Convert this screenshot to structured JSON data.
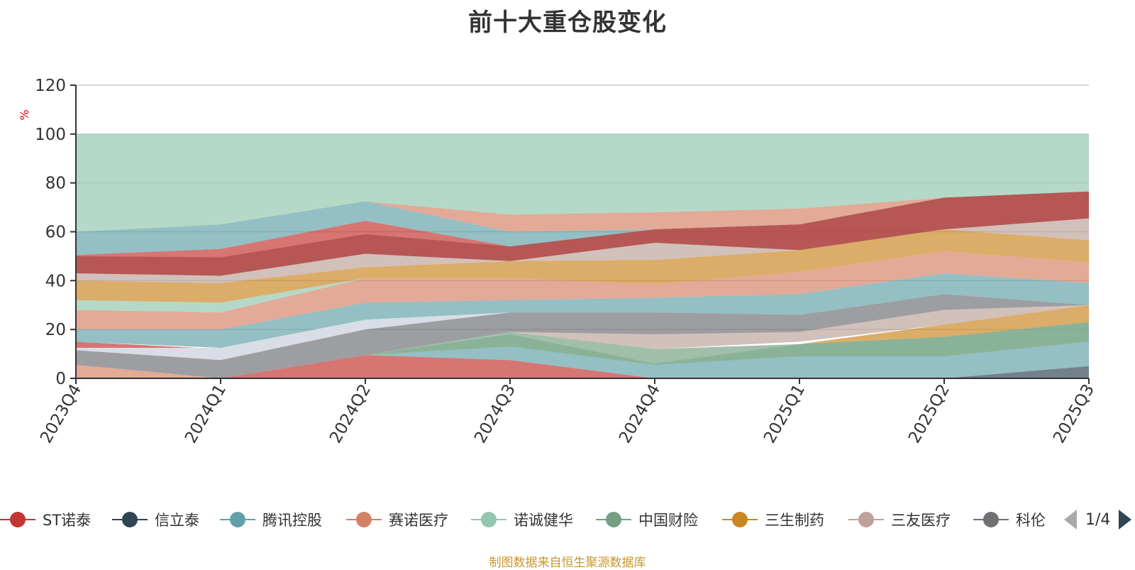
{
  "title": "前十大重仓股变化",
  "source_note": "制图数据来自恒生聚源数据库",
  "legend": {
    "items": [
      {
        "name": "ST诺泰",
        "color": "#c23531"
      },
      {
        "name": "信立泰",
        "color": "#2f4554"
      },
      {
        "name": "腾讯控股",
        "color": "#61a0a8"
      },
      {
        "name": "赛诺医疗",
        "color": "#d48265"
      },
      {
        "name": "诺诚健华",
        "color": "#91c7ae"
      },
      {
        "name": "中国财险",
        "color": "#749f83"
      },
      {
        "name": "三生制药",
        "color": "#ca8622"
      },
      {
        "name": "三友医疗",
        "color": "#bda29a"
      },
      {
        "name": "科伦",
        "color": "#6e7074"
      }
    ],
    "page": "1/4"
  },
  "chart_data": {
    "type": "area",
    "title": "前十大重仓股变化",
    "ylabel": "%",
    "ylim": [
      0,
      120
    ],
    "yticks": [
      0,
      20,
      40,
      60,
      80,
      100,
      120
    ],
    "categories": [
      "2023Q4",
      "2024Q1",
      "2024Q2",
      "2024Q3",
      "2024Q4",
      "2025Q1",
      "2025Q2",
      "2025Q3"
    ],
    "bands": [
      {
        "color": "#c23531",
        "opacity": 0.68,
        "lower": [
          0,
          0,
          0,
          0,
          0,
          0,
          0,
          0
        ],
        "upper": [
          0,
          0,
          9.5,
          7.5,
          0,
          0,
          0,
          0
        ]
      },
      {
        "color": "#2f4554",
        "opacity": 0.68,
        "lower": [
          0,
          0,
          0,
          0,
          0,
          0,
          0,
          0
        ],
        "upper": [
          0,
          0,
          0,
          0,
          0,
          0,
          0,
          5
        ]
      },
      {
        "color": "#61a0a8",
        "opacity": 0.68,
        "lower": [
          0,
          0,
          9.5,
          7.5,
          0,
          0,
          0,
          5
        ],
        "upper": [
          0,
          0,
          9.5,
          13,
          5.5,
          9,
          9,
          15
        ]
      },
      {
        "color": "#d48265",
        "opacity": 0.68,
        "lower": [
          0,
          0,
          0,
          0,
          0,
          0,
          0,
          0
        ],
        "upper": [
          5.5,
          0,
          0,
          0,
          0,
          0,
          0,
          0
        ]
      },
      {
        "color": "#91c7ae",
        "opacity": 0.68,
        "lower": [
          0,
          0,
          9.5,
          13,
          5.5,
          9,
          9,
          15
        ],
        "upper": [
          0,
          0,
          9.5,
          18,
          6,
          14,
          17,
          23
        ]
      },
      {
        "color": "#749f83",
        "opacity": 0.68,
        "lower": [
          0,
          0,
          9.5,
          13,
          5.5,
          9,
          9,
          15
        ],
        "upper": [
          0,
          0,
          9.5,
          19,
          12,
          14,
          17,
          23
        ]
      },
      {
        "color": "#ca8622",
        "opacity": 0.68,
        "lower": [
          0,
          0,
          9.5,
          18,
          12,
          14,
          17,
          23
        ],
        "upper": [
          0,
          0,
          9.5,
          18,
          12,
          14,
          22,
          30
        ]
      },
      {
        "color": "#bda29a",
        "opacity": 0.68,
        "lower": [
          0,
          0,
          9.5,
          19,
          12,
          15,
          22,
          30
        ],
        "upper": [
          0,
          0,
          9.5,
          19,
          18,
          19,
          28,
          30
        ]
      },
      {
        "color": "#6e7074",
        "opacity": 0.68,
        "lower": [
          5.5,
          0,
          9.5,
          19,
          18,
          19,
          28,
          30
        ],
        "upper": [
          11.5,
          7.5,
          20,
          27,
          27,
          26,
          34.5,
          30
        ]
      },
      {
        "color": "#c23531",
        "opacity": 0.68,
        "lower": [
          11.5,
          7.5,
          20,
          27,
          27,
          26,
          34.5,
          30
        ],
        "upper": [
          15,
          12,
          20,
          27,
          27,
          26,
          34.5,
          30
        ]
      },
      {
        "color": "#d9dde6",
        "opacity": 1.0,
        "lower": [
          11.5,
          7.5,
          20,
          27,
          27,
          26,
          34.5,
          30
        ],
        "upper": [
          12.5,
          12.5,
          24,
          27,
          27,
          26,
          34.5,
          30
        ]
      },
      {
        "color": "#61a0a8",
        "opacity": 0.68,
        "lower": [
          15,
          12.5,
          24,
          27,
          27,
          26,
          34.5,
          30
        ],
        "upper": [
          20,
          20,
          31,
          32,
          33,
          34.5,
          43,
          39
        ]
      },
      {
        "color": "#d48265",
        "opacity": 0.68,
        "lower": [
          20,
          20,
          31,
          32,
          33,
          34.5,
          43,
          39
        ],
        "upper": [
          28,
          27,
          41,
          41,
          38.5,
          43.5,
          52,
          47.5
        ]
      },
      {
        "color": "#91c7ae",
        "opacity": 0.68,
        "lower": [
          28,
          27,
          41,
          41,
          38.5,
          43.5,
          52,
          47.5
        ],
        "upper": [
          32,
          31,
          41,
          41,
          38.5,
          43.5,
          52,
          47.5
        ]
      },
      {
        "color": "#ca8622",
        "opacity": 0.68,
        "lower": [
          32,
          31,
          41,
          41,
          38.5,
          43.5,
          52,
          47.5
        ],
        "upper": [
          40,
          39,
          45.5,
          48,
          48.5,
          52.5,
          61,
          56.5
        ]
      },
      {
        "color": "#bda29a",
        "opacity": 0.68,
        "lower": [
          40,
          39,
          45.5,
          48,
          48.5,
          52.5,
          61,
          56.5
        ],
        "upper": [
          43,
          42,
          51,
          48,
          55.5,
          52.5,
          61,
          65.5
        ]
      },
      {
        "color": "#6e7074",
        "opacity": 0.68,
        "lower": [
          43,
          42,
          51,
          48,
          55.5,
          52.5,
          61,
          65.5
        ],
        "upper": [
          50,
          49.5,
          59,
          54,
          61,
          63,
          74,
          76.5
        ]
      },
      {
        "color": "#c23531",
        "opacity": 0.68,
        "lower": [
          43,
          42,
          51,
          48,
          55.5,
          52.5,
          61,
          65.5
        ],
        "upper": [
          50.5,
          53,
          64.5,
          54,
          61,
          63,
          74,
          76.5
        ]
      },
      {
        "color": "#61a0a8",
        "opacity": 0.68,
        "lower": [
          50.5,
          53,
          64.5,
          54,
          61,
          63,
          74,
          76.5
        ],
        "upper": [
          60,
          63,
          72.5,
          60,
          61,
          63,
          74,
          76.5
        ]
      },
      {
        "color": "#d48265",
        "opacity": 0.68,
        "lower": [
          60,
          63,
          72.5,
          60,
          61,
          63,
          74,
          76.5
        ],
        "upper": [
          60,
          63,
          72.5,
          67,
          68,
          69.5,
          74,
          76.5
        ]
      },
      {
        "color": "#91c7ae",
        "opacity": 0.68,
        "lower": [
          60,
          63,
          72.5,
          67,
          68,
          69.5,
          74,
          76.5
        ],
        "upper": [
          100,
          100,
          100,
          100,
          100,
          100,
          100,
          100
        ]
      }
    ]
  }
}
